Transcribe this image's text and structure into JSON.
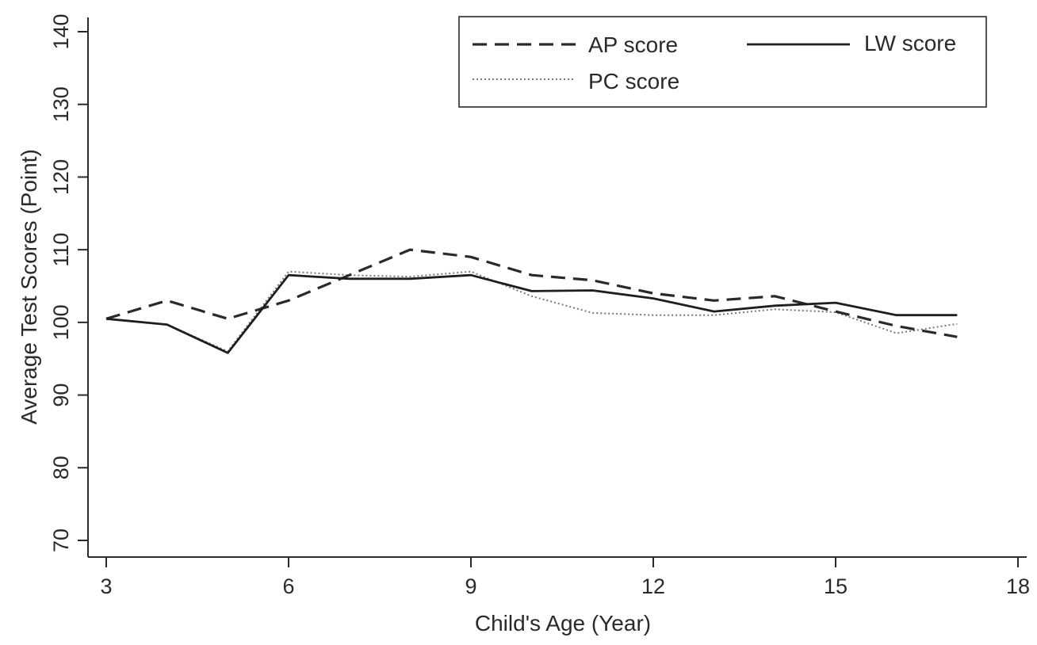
{
  "chart_data": {
    "type": "line",
    "xlabel": "Child's Age (Year)",
    "ylabel": "Average Test Scores (Point)",
    "xlim": [
      3,
      18
    ],
    "ylim": [
      70,
      140
    ],
    "xticks": [
      3,
      6,
      9,
      12,
      15,
      18
    ],
    "yticks": [
      70,
      80,
      90,
      100,
      110,
      120,
      130,
      140
    ],
    "x": [
      3,
      4,
      5,
      6,
      7,
      8,
      9,
      10,
      11,
      12,
      13,
      14,
      15,
      16,
      17
    ],
    "series": [
      {
        "name": "AP score",
        "style": "dashed",
        "color": "#2a2a2a",
        "values": [
          100.5,
          103,
          100.5,
          103,
          106.5,
          110,
          109,
          106.5,
          105.8,
          104,
          103,
          103.6,
          101.5,
          99.5,
          98
        ]
      },
      {
        "name": "LW score",
        "style": "solid",
        "color": "#1e1e1e",
        "values": [
          100.5,
          99.7,
          95.8,
          106.5,
          106,
          106,
          106.5,
          104.3,
          104.4,
          103.3,
          101.5,
          102.3,
          102.7,
          101,
          101
        ]
      },
      {
        "name": "PC score",
        "style": "dotted",
        "color": "#777777",
        "values": [
          100.5,
          99.7,
          96,
          107,
          106.5,
          106.3,
          107,
          103.6,
          101.3,
          101,
          101,
          101.8,
          101.4,
          98.5,
          99.8
        ]
      }
    ],
    "legend_position": "top-right",
    "grid": false
  }
}
